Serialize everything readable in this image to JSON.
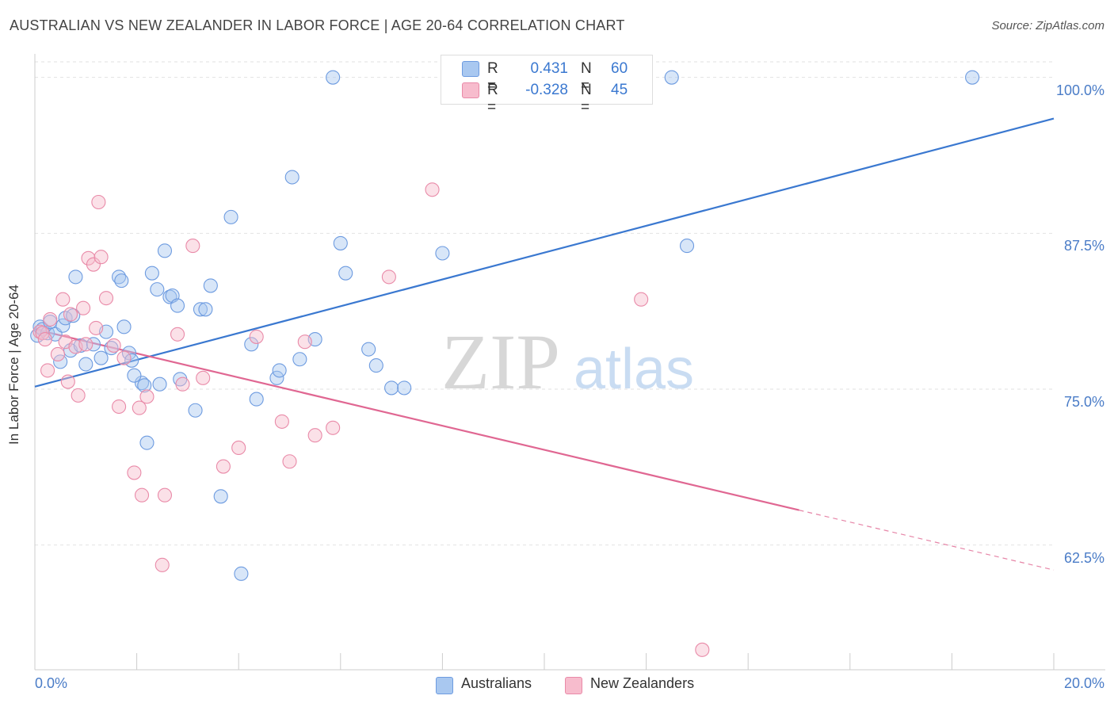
{
  "title": "AUSTRALIAN VS NEW ZEALANDER IN LABOR FORCE | AGE 20-64 CORRELATION CHART",
  "source": "Source: ZipAtlas.com",
  "watermark": {
    "zip": "ZIP",
    "atlas": "atlas"
  },
  "legend": {
    "rows": [
      {
        "r_label": "R =",
        "r_value": "0.431",
        "n_label": "N =",
        "n_value": "60",
        "color": "#a9c8f0",
        "edge": "#6d9be0"
      },
      {
        "r_label": "R =",
        "r_value": "-0.328",
        "n_label": "N =",
        "n_value": "45",
        "color": "#f7bccd",
        "edge": "#e98aa8"
      }
    ],
    "bottom": [
      {
        "label": "Australians",
        "color": "#a9c8f0",
        "edge": "#6d9be0"
      },
      {
        "label": "New Zealanders",
        "color": "#f7bccd",
        "edge": "#e98aa8"
      }
    ]
  },
  "chart_data": {
    "type": "scatter",
    "title": "AUSTRALIAN VS NEW ZEALANDER IN LABOR FORCE | AGE 20-64 CORRELATION CHART",
    "xlabel": "",
    "ylabel": "In Labor Force | Age 20-64",
    "xlim": [
      0,
      20
    ],
    "ylim": [
      52.5,
      101.25
    ],
    "x_tick_labels": [
      "0.0%",
      "20.0%"
    ],
    "x_tick_values": [
      0,
      20
    ],
    "y_tick_labels": [
      "100.0%",
      "87.5%",
      "75.0%",
      "62.5%"
    ],
    "y_tick_values": [
      100,
      87.5,
      75,
      62.5
    ],
    "grid": true,
    "colors": {
      "Australians": "#3a78d0",
      "New Zealanders": "#e06792"
    },
    "series": [
      {
        "name": "Australians",
        "points": [
          [
            0.05,
            79.3
          ],
          [
            0.1,
            80.0
          ],
          [
            0.15,
            79.8
          ],
          [
            0.25,
            79.5
          ],
          [
            0.3,
            80.4
          ],
          [
            0.4,
            79.4
          ],
          [
            0.5,
            77.2
          ],
          [
            0.55,
            80.1
          ],
          [
            0.6,
            80.7
          ],
          [
            0.7,
            78.1
          ],
          [
            0.75,
            80.9
          ],
          [
            0.8,
            84.0
          ],
          [
            0.9,
            78.5
          ],
          [
            1.0,
            77.0
          ],
          [
            1.15,
            78.6
          ],
          [
            1.3,
            77.5
          ],
          [
            1.4,
            79.6
          ],
          [
            1.5,
            78.3
          ],
          [
            1.65,
            84.0
          ],
          [
            1.7,
            83.7
          ],
          [
            1.75,
            80.0
          ],
          [
            1.85,
            77.9
          ],
          [
            1.9,
            77.3
          ],
          [
            2.1,
            75.5
          ],
          [
            2.15,
            75.3
          ],
          [
            2.2,
            70.7
          ],
          [
            2.3,
            84.3
          ],
          [
            2.4,
            83.0
          ],
          [
            2.45,
            75.4
          ],
          [
            2.55,
            86.1
          ],
          [
            2.65,
            82.4
          ],
          [
            2.7,
            82.5
          ],
          [
            2.8,
            81.7
          ],
          [
            2.85,
            75.8
          ],
          [
            3.15,
            73.3
          ],
          [
            3.25,
            81.4
          ],
          [
            3.35,
            81.4
          ],
          [
            3.45,
            83.3
          ],
          [
            3.65,
            66.4
          ],
          [
            3.85,
            88.8
          ],
          [
            4.05,
            60.2
          ],
          [
            4.25,
            78.6
          ],
          [
            4.35,
            74.2
          ],
          [
            4.75,
            75.9
          ],
          [
            4.8,
            76.5
          ],
          [
            5.05,
            92.0
          ],
          [
            5.2,
            77.4
          ],
          [
            5.5,
            79.0
          ],
          [
            5.85,
            100.0
          ],
          [
            6.0,
            86.7
          ],
          [
            6.1,
            84.3
          ],
          [
            6.7,
            76.9
          ],
          [
            7.0,
            75.1
          ],
          [
            7.25,
            75.1
          ],
          [
            8.0,
            85.9
          ],
          [
            12.5,
            100.0
          ],
          [
            12.8,
            86.5
          ],
          [
            18.4,
            100.0
          ],
          [
            1.95,
            76.1
          ],
          [
            6.55,
            78.2
          ]
        ]
      },
      {
        "name": "New Zealanders",
        "points": [
          [
            0.1,
            79.6
          ],
          [
            0.15,
            79.5
          ],
          [
            0.2,
            79.0
          ],
          [
            0.25,
            76.5
          ],
          [
            0.3,
            80.6
          ],
          [
            0.45,
            77.8
          ],
          [
            0.55,
            82.2
          ],
          [
            0.6,
            78.8
          ],
          [
            0.65,
            75.6
          ],
          [
            0.7,
            81.0
          ],
          [
            0.8,
            78.4
          ],
          [
            0.85,
            74.5
          ],
          [
            0.95,
            81.5
          ],
          [
            1.0,
            78.6
          ],
          [
            1.05,
            85.5
          ],
          [
            1.15,
            85.0
          ],
          [
            1.2,
            79.9
          ],
          [
            1.25,
            90.0
          ],
          [
            1.3,
            85.6
          ],
          [
            1.4,
            82.3
          ],
          [
            1.55,
            78.5
          ],
          [
            1.65,
            73.6
          ],
          [
            1.75,
            77.5
          ],
          [
            1.95,
            68.3
          ],
          [
            2.05,
            73.5
          ],
          [
            2.1,
            66.5
          ],
          [
            2.2,
            74.4
          ],
          [
            2.5,
            60.9
          ],
          [
            2.55,
            66.5
          ],
          [
            2.8,
            79.4
          ],
          [
            2.9,
            75.4
          ],
          [
            3.1,
            86.5
          ],
          [
            3.3,
            75.9
          ],
          [
            3.7,
            68.8
          ],
          [
            4.0,
            70.3
          ],
          [
            4.35,
            79.2
          ],
          [
            4.85,
            72.4
          ],
          [
            5.0,
            69.2
          ],
          [
            5.3,
            78.8
          ],
          [
            5.5,
            71.3
          ],
          [
            5.85,
            71.9
          ],
          [
            6.95,
            84.0
          ],
          [
            7.8,
            91.0
          ],
          [
            11.9,
            82.2
          ],
          [
            13.1,
            54.1
          ]
        ]
      }
    ],
    "trend_lines": [
      {
        "name": "Australians",
        "x": [
          0,
          20
        ],
        "y": [
          75.2,
          96.7
        ],
        "style": "solid"
      },
      {
        "name": "New Zealanders",
        "x": [
          0,
          15
        ],
        "y": [
          79.8,
          65.3
        ],
        "style": "solid",
        "dashed_extension_to": [
          20,
          60.5
        ]
      }
    ]
  }
}
